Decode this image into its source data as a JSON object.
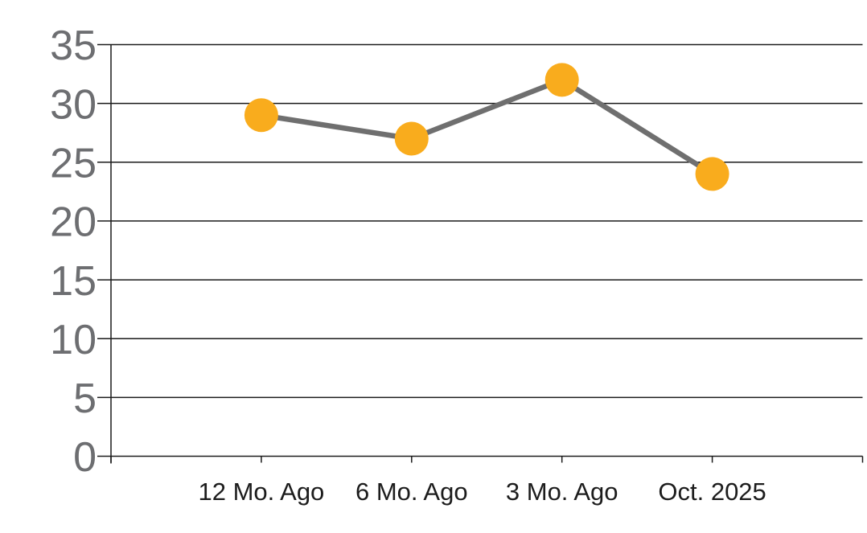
{
  "chart_data": {
    "type": "line",
    "categories": [
      "12 Mo. Ago",
      "6 Mo. Ago",
      "3 Mo. Ago",
      "Oct. 2025"
    ],
    "values": [
      29,
      27,
      32,
      24
    ],
    "series": [
      {
        "name": "value",
        "values": [
          29,
          27,
          32,
          24
        ]
      }
    ],
    "title": "",
    "xlabel": "",
    "ylabel": "",
    "ylim": [
      0,
      35
    ],
    "ytick_step": 5,
    "yticks": [
      0,
      5,
      10,
      15,
      20,
      25,
      30,
      35
    ],
    "grid": "horizontal",
    "legend": "none",
    "colors": {
      "marker": "#F9AC1D",
      "line": "#6F6F6F",
      "grid": "#1A1A1A",
      "axis": "#1A1A1A",
      "y_tick_label": "#6D6E71",
      "x_tick_label": "#1C1C1C",
      "background": "#FFFFFF"
    }
  }
}
